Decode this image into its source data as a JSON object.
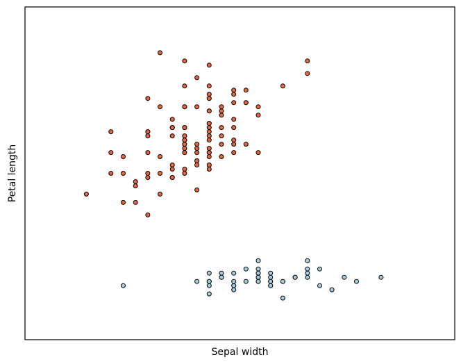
{
  "chart_data": {
    "type": "scatter",
    "title": "",
    "xlabel": "Sepal width",
    "ylabel": "Petal length",
    "xlim": [
      1.5,
      5.0
    ],
    "ylim": [
      0.0,
      8.0
    ],
    "xticks_visible": false,
    "yticks_visible": false,
    "grid": false,
    "legend": "none",
    "marker_edge_color": "#000000",
    "series": [
      {
        "color": "#a6cee3",
        "points": [
          [
            3.5,
            1.4
          ],
          [
            3.0,
            1.4
          ],
          [
            3.2,
            1.3
          ],
          [
            3.1,
            1.5
          ],
          [
            3.6,
            1.4
          ],
          [
            3.9,
            1.7
          ],
          [
            3.4,
            1.4
          ],
          [
            3.4,
            1.5
          ],
          [
            2.9,
            1.4
          ],
          [
            3.1,
            1.5
          ],
          [
            3.7,
            1.5
          ],
          [
            3.4,
            1.6
          ],
          [
            3.0,
            1.4
          ],
          [
            3.0,
            1.1
          ],
          [
            4.0,
            1.2
          ],
          [
            4.4,
            1.5
          ],
          [
            3.9,
            1.3
          ],
          [
            3.5,
            1.4
          ],
          [
            3.8,
            1.7
          ],
          [
            3.8,
            1.5
          ],
          [
            3.4,
            1.7
          ],
          [
            3.7,
            1.5
          ],
          [
            3.6,
            1.0
          ],
          [
            3.3,
            1.7
          ],
          [
            3.4,
            1.9
          ],
          [
            3.0,
            1.6
          ],
          [
            3.4,
            1.6
          ],
          [
            3.5,
            1.5
          ],
          [
            3.4,
            1.4
          ],
          [
            3.2,
            1.6
          ],
          [
            3.1,
            1.6
          ],
          [
            3.4,
            1.5
          ],
          [
            4.1,
            1.5
          ],
          [
            4.2,
            1.4
          ],
          [
            3.1,
            1.5
          ],
          [
            3.2,
            1.2
          ],
          [
            3.5,
            1.3
          ],
          [
            3.6,
            1.4
          ],
          [
            3.0,
            1.3
          ],
          [
            3.4,
            1.5
          ],
          [
            3.5,
            1.3
          ],
          [
            2.3,
            1.3
          ],
          [
            3.2,
            1.3
          ],
          [
            3.5,
            1.6
          ],
          [
            3.8,
            1.9
          ],
          [
            3.0,
            1.4
          ],
          [
            3.8,
            1.6
          ],
          [
            3.2,
            1.4
          ],
          [
            3.7,
            1.5
          ],
          [
            3.3,
            1.4
          ]
        ]
      },
      {
        "color": "#e6673b",
        "points": [
          [
            3.2,
            4.7
          ],
          [
            3.2,
            4.5
          ],
          [
            3.1,
            4.9
          ],
          [
            2.3,
            4.0
          ],
          [
            2.8,
            4.6
          ],
          [
            2.8,
            4.5
          ],
          [
            3.3,
            4.7
          ],
          [
            2.4,
            3.3
          ],
          [
            2.9,
            4.6
          ],
          [
            2.7,
            3.9
          ],
          [
            2.0,
            3.5
          ],
          [
            3.0,
            4.2
          ],
          [
            2.2,
            4.0
          ],
          [
            2.9,
            4.7
          ],
          [
            2.9,
            3.6
          ],
          [
            3.1,
            4.4
          ],
          [
            3.0,
            4.5
          ],
          [
            2.7,
            4.1
          ],
          [
            2.2,
            4.5
          ],
          [
            2.5,
            3.9
          ],
          [
            3.2,
            4.8
          ],
          [
            2.8,
            4.0
          ],
          [
            2.5,
            4.9
          ],
          [
            2.8,
            4.7
          ],
          [
            2.9,
            4.3
          ],
          [
            3.0,
            4.4
          ],
          [
            2.8,
            4.8
          ],
          [
            3.0,
            5.0
          ],
          [
            2.9,
            4.5
          ],
          [
            2.6,
            3.5
          ],
          [
            2.4,
            3.8
          ],
          [
            2.4,
            3.7
          ],
          [
            2.7,
            3.9
          ],
          [
            2.7,
            5.1
          ],
          [
            3.0,
            4.5
          ],
          [
            3.4,
            4.5
          ],
          [
            3.1,
            4.7
          ],
          [
            2.3,
            4.4
          ],
          [
            3.0,
            4.1
          ],
          [
            2.5,
            4.0
          ],
          [
            2.6,
            4.4
          ],
          [
            3.0,
            4.6
          ],
          [
            2.6,
            4.0
          ],
          [
            2.3,
            3.3
          ],
          [
            2.7,
            4.2
          ],
          [
            3.0,
            4.2
          ],
          [
            2.9,
            4.2
          ],
          [
            2.9,
            4.3
          ],
          [
            2.5,
            3.0
          ],
          [
            2.8,
            4.1
          ],
          [
            3.3,
            6.0
          ],
          [
            2.7,
            5.1
          ],
          [
            3.0,
            5.9
          ],
          [
            2.9,
            5.6
          ],
          [
            3.0,
            5.8
          ],
          [
            3.0,
            6.6
          ],
          [
            2.5,
            4.5
          ],
          [
            2.9,
            6.3
          ],
          [
            2.5,
            5.8
          ],
          [
            3.6,
            6.1
          ],
          [
            3.2,
            5.1
          ],
          [
            2.7,
            5.3
          ],
          [
            3.0,
            5.5
          ],
          [
            2.5,
            5.0
          ],
          [
            2.8,
            5.1
          ],
          [
            3.2,
            5.3
          ],
          [
            3.0,
            5.5
          ],
          [
            3.8,
            6.7
          ],
          [
            2.6,
            6.9
          ],
          [
            2.2,
            5.0
          ],
          [
            3.2,
            5.7
          ],
          [
            2.8,
            4.9
          ],
          [
            2.8,
            6.7
          ],
          [
            2.7,
            4.9
          ],
          [
            3.3,
            5.7
          ],
          [
            3.2,
            6.0
          ],
          [
            2.8,
            4.8
          ],
          [
            3.0,
            4.9
          ],
          [
            2.8,
            5.6
          ],
          [
            3.0,
            5.8
          ],
          [
            2.8,
            6.1
          ],
          [
            3.8,
            6.4
          ],
          [
            2.8,
            5.6
          ],
          [
            2.8,
            5.1
          ],
          [
            2.6,
            5.6
          ],
          [
            3.0,
            6.1
          ],
          [
            3.4,
            5.6
          ],
          [
            3.1,
            5.5
          ],
          [
            3.0,
            4.8
          ],
          [
            3.1,
            5.4
          ],
          [
            3.1,
            5.6
          ],
          [
            3.1,
            5.1
          ],
          [
            2.7,
            5.1
          ],
          [
            3.2,
            5.9
          ],
          [
            3.3,
            5.7
          ],
          [
            3.0,
            5.2
          ],
          [
            2.5,
            5.0
          ],
          [
            3.0,
            5.2
          ],
          [
            3.4,
            5.4
          ],
          [
            3.0,
            5.1
          ]
        ]
      }
    ]
  }
}
